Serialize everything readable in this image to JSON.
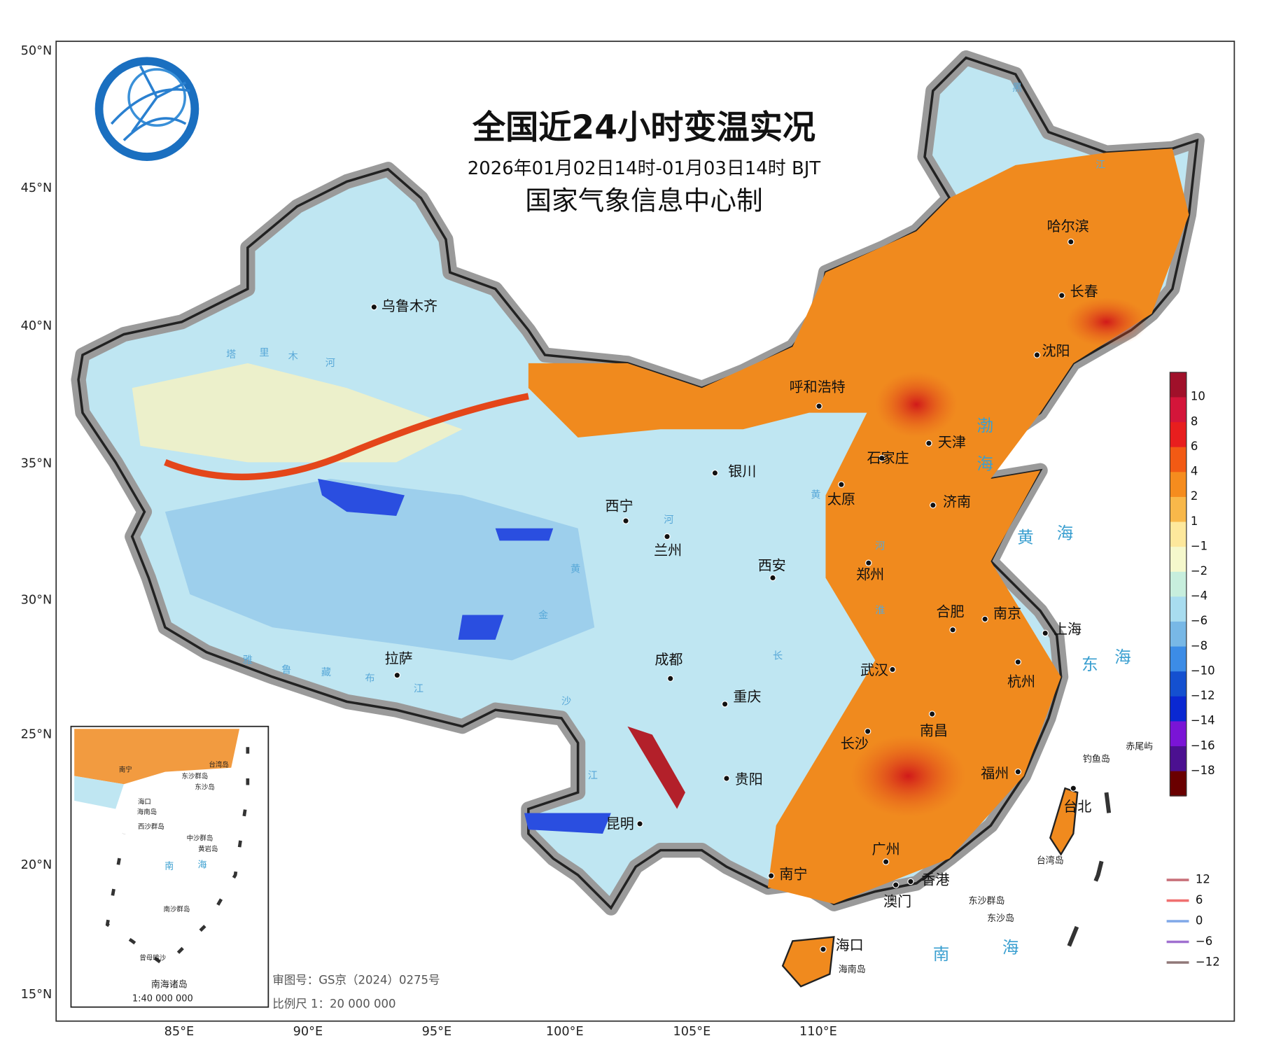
{
  "header": {
    "title": "全国近24小时变温实况",
    "subtitle": "2026年01月02日14时-01月03日14时 BJT",
    "producer": "国家气象信息中心制"
  },
  "axes": {
    "lat_labels": [
      "50°N",
      "45°N",
      "40°N",
      "35°N",
      "30°N",
      "25°N",
      "20°N",
      "15°N"
    ],
    "lon_labels": [
      "85°E",
      "90°E",
      "95°E",
      "100°E",
      "105°E",
      "110°E"
    ]
  },
  "cities": [
    "乌鲁木齐",
    "呼和浩特",
    "哈尔滨",
    "长春",
    "沈阳",
    "天津",
    "石家庄",
    "太原",
    "济南",
    "银川",
    "西宁",
    "兰州",
    "西安",
    "郑州",
    "合肥",
    "南京",
    "上海",
    "杭州",
    "武汉",
    "成都",
    "重庆",
    "拉萨",
    "长沙",
    "南昌",
    "福州",
    "贵阳",
    "昆明",
    "南宁",
    "广州",
    "香港",
    "澳门",
    "海口",
    "台北"
  ],
  "sea_labels": [
    "渤",
    "海",
    "黄",
    "海",
    "东",
    "海",
    "南",
    "海"
  ],
  "river_labels": [
    "塔",
    "里",
    "木",
    "河",
    "黑",
    "江",
    "黄",
    "河",
    "黄",
    "河",
    "淮",
    "长",
    "金",
    "沙",
    "江",
    "雅",
    "鲁",
    "藏",
    "布",
    "江"
  ],
  "place_labels": [
    "海南岛",
    "东沙群岛",
    "东沙岛",
    "钓鱼岛",
    "赤尾屿",
    "台湾岛"
  ],
  "color_legend": {
    "labels": [
      "10",
      "8",
      "6",
      "4",
      "2",
      "1",
      "−1",
      "−2",
      "−4",
      "−6",
      "−8",
      "−10",
      "−12",
      "−14",
      "−16",
      "−18"
    ]
  },
  "contour_legend": {
    "labels": [
      "12",
      "6",
      "0",
      "−6",
      "−12"
    ]
  },
  "inset": {
    "labels": [
      "南宁",
      "台湾岛",
      "东沙群岛",
      "东沙岛",
      "海口",
      "海南岛",
      "西沙群岛",
      "中沙群岛",
      "黄岩岛",
      "南",
      "海",
      "南沙群岛",
      "曾母暗沙"
    ],
    "title": "南海诸岛",
    "scale": "1:40 000 000"
  },
  "footer": {
    "approval": "审图号：GS京（2024）0275号",
    "scale": "比例尺  1：20 000 000"
  }
}
